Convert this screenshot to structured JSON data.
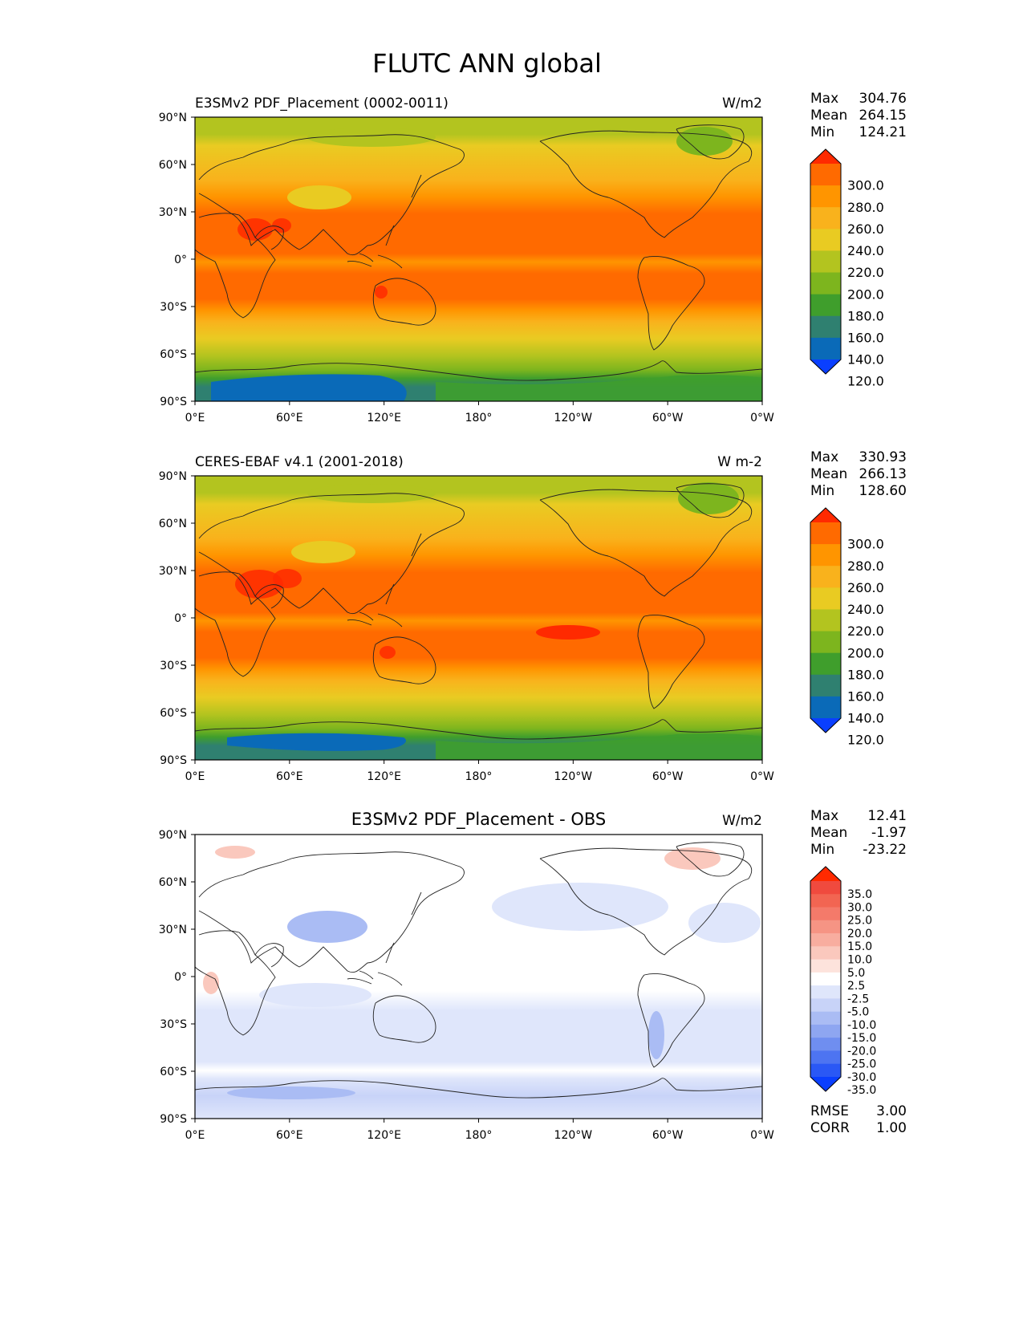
{
  "figure_title": "FLUTC ANN global",
  "lon_ticks": [
    "0°E",
    "60°E",
    "120°E",
    "180°",
    "120°W",
    "60°W",
    "0°W"
  ],
  "lat_ticks": [
    "90°N",
    "60°N",
    "30°N",
    "0°",
    "30°S",
    "60°S",
    "90°S"
  ],
  "stat_labels": {
    "max": "Max",
    "mean": "Mean",
    "min": "Min",
    "rmse": "RMSE",
    "corr": "CORR"
  },
  "panels": [
    {
      "title": "E3SMv2 PDF_Placement (0002-0011)",
      "units": "W/m2",
      "kind": "field",
      "stats": {
        "max": "304.76",
        "mean": "264.15",
        "min": "124.21"
      }
    },
    {
      "title": "CERES-EBAF v4.1 (2001-2018)",
      "units": "W m-2",
      "kind": "field",
      "stats": {
        "max": "330.93",
        "mean": "266.13",
        "min": "128.60"
      }
    },
    {
      "title": "E3SMv2 PDF_Placement - OBS",
      "units": "W/m2",
      "kind": "diff",
      "stats": {
        "max": "12.41",
        "mean": "-1.97",
        "min": "-23.22",
        "rmse": "3.00",
        "corr": "1.00"
      }
    }
  ],
  "colorbars": {
    "field": {
      "labels": [
        "300.0",
        "280.0",
        "260.0",
        "240.0",
        "220.0",
        "200.0",
        "180.0",
        "160.0",
        "140.0",
        "120.0"
      ],
      "colors": [
        "#ff2a00",
        "#ff6a00",
        "#ff9500",
        "#f9b21c",
        "#e9cb22",
        "#b3c41f",
        "#7db51e",
        "#3f9e2c",
        "#2f8070",
        "#0a6ab8",
        "#0a3fff"
      ]
    },
    "diff": {
      "labels": [
        "35.0",
        "30.0",
        "25.0",
        "20.0",
        "15.0",
        "10.0",
        "5.0",
        "2.5",
        "-2.5",
        "-5.0",
        "-10.0",
        "-15.0",
        "-20.0",
        "-25.0",
        "-30.0",
        "-35.0"
      ],
      "colors": [
        "#ff2a00",
        "#f04a3e",
        "#f26552",
        "#f47a6a",
        "#f69484",
        "#f8ad9f",
        "#fac8bd",
        "#fde3dc",
        "#ffffff",
        "#dfe6fb",
        "#c8d3f8",
        "#aabcf4",
        "#8ea6f1",
        "#6f8ef0",
        "#4d74f1",
        "#2a58f5",
        "#0a3fff"
      ]
    }
  }
}
